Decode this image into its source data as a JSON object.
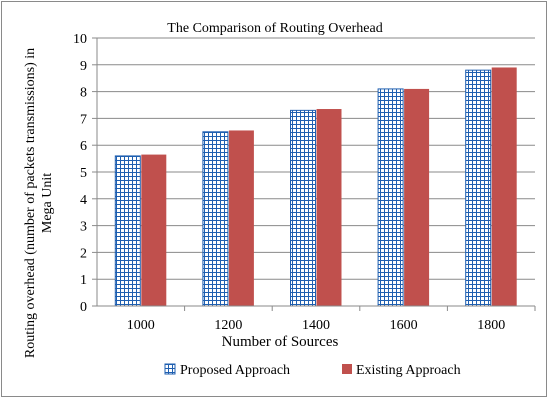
{
  "chart_data": {
    "type": "bar",
    "title": "The Comparison of Routing Overhead",
    "xlabel": "Number of Sources",
    "ylabel_lines": [
      "Routing overhead (number of packets transmissions) in",
      "Mega Unit"
    ],
    "categories": [
      "1000",
      "1200",
      "1400",
      "1600",
      "1800"
    ],
    "ylim": [
      0,
      10
    ],
    "yticks": [
      "0",
      "1",
      "2",
      "3",
      "4",
      "5",
      "6",
      "7",
      "8",
      "9",
      "10"
    ],
    "grid": true,
    "legend_position": "bottom",
    "series": [
      {
        "name": "Proposed Approach",
        "values": [
          5.6,
          6.5,
          7.3,
          8.1,
          8.8
        ],
        "style": "grid-pattern",
        "color": "#1f5fb0"
      },
      {
        "name": "Existing Approach",
        "values": [
          5.65,
          6.55,
          7.35,
          8.1,
          8.9
        ],
        "style": "solid",
        "color": "#c0504d"
      }
    ]
  }
}
